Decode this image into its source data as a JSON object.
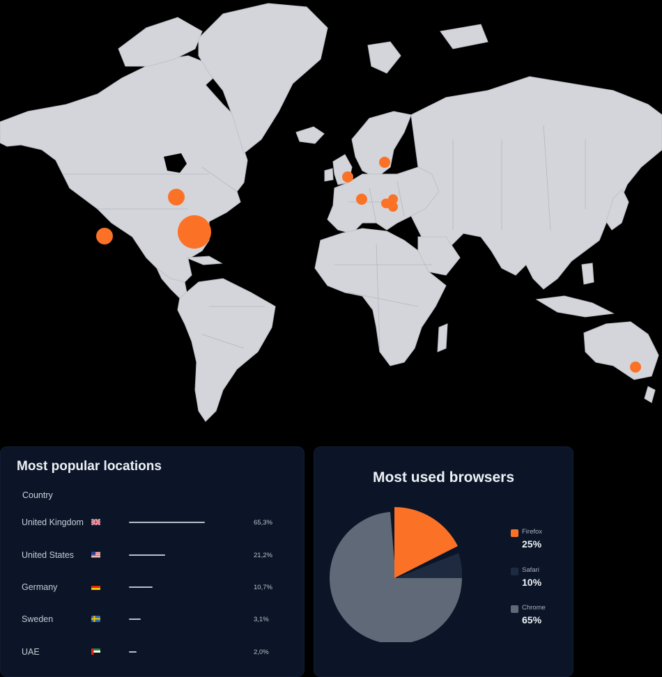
{
  "map": {
    "hotspot_color": "#fb7227",
    "land_color": "#d3d5da"
  },
  "locations": {
    "title": "Most popular locations",
    "column_header": "Country",
    "rows": [
      {
        "country": "United Kingdom",
        "flag": "uk-flag-icon",
        "share": 0.653,
        "value": "65,3%"
      },
      {
        "country": "United States",
        "flag": "us-flag-icon",
        "share": 0.212,
        "value": "21,2%"
      },
      {
        "country": "Germany",
        "flag": "germany-flag-icon",
        "share": 0.107,
        "value": "10,7%"
      },
      {
        "country": "Sweden",
        "flag": "sweden-flag-icon",
        "share": 0.031,
        "value": "3,1%"
      },
      {
        "country": "UAE",
        "flag": "uae-flag-icon",
        "share": 0.02,
        "value": "2,0%"
      }
    ]
  },
  "browsers": {
    "title": "Most used browsers",
    "items": [
      {
        "name": "Firefox",
        "value": "25%",
        "percent": 25,
        "color": "#fb7227"
      },
      {
        "name": "Safari",
        "value": "10%",
        "percent": 10,
        "color": "#1d2a40"
      },
      {
        "name": "Chrome",
        "value": "65%",
        "percent": 65,
        "color": "#606977"
      }
    ]
  }
}
